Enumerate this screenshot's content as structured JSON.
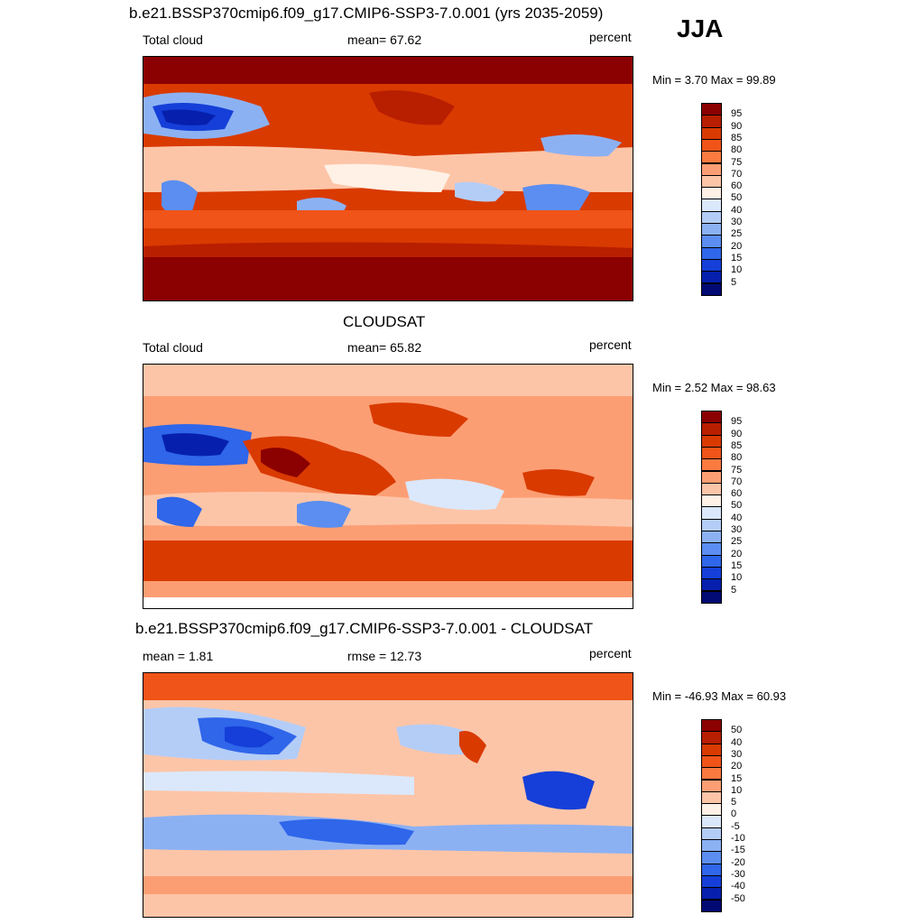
{
  "season": "JJA",
  "panels": [
    {
      "id": "model",
      "title": "b.e21.BSSP370cmip6.f09_g17.CMIP6-SSP3-7.0.001 (yrs 2035-2059)",
      "left_label": "Total cloud",
      "center_label": "mean=  67.62",
      "units": "percent",
      "minmax": "Min =   3.70 Max =  99.89",
      "legend_labels": [
        "95",
        "90",
        "85",
        "80",
        "75",
        "70",
        "60",
        "50",
        "40",
        "30",
        "25",
        "20",
        "15",
        "10",
        "5"
      ]
    },
    {
      "id": "obs",
      "title": "CLOUDSAT",
      "left_label": "Total cloud",
      "center_label": "mean=  65.82",
      "units": "percent",
      "minmax": "Min =   2.52 Max =  98.63",
      "legend_labels": [
        "95",
        "90",
        "85",
        "80",
        "75",
        "70",
        "60",
        "50",
        "40",
        "30",
        "25",
        "20",
        "15",
        "10",
        "5"
      ]
    },
    {
      "id": "diff",
      "title": "b.e21.BSSP370cmip6.f09_g17.CMIP6-SSP3-7.0.001 - CLOUDSAT",
      "left_label": "mean =   1.81",
      "center_label": "rmse =  12.73",
      "units": "percent",
      "minmax": "Min = -46.93 Max =  60.93",
      "legend_labels": [
        "50",
        "40",
        "30",
        "20",
        "15",
        "10",
        "5",
        "0",
        "-5",
        "-10",
        "-15",
        "-20",
        "-30",
        "-40",
        "-50"
      ]
    }
  ],
  "colors": {
    "scale": [
      "#8b0000",
      "#b81e00",
      "#d93a00",
      "#f05418",
      "#fa7a40",
      "#fc9e74",
      "#fdc5a8",
      "#fff1e6",
      "#dbe8fb",
      "#b4cdf7",
      "#8cb1f3",
      "#5b8ef0",
      "#2f66ea",
      "#153fd8",
      "#0620ad",
      "#010a72"
    ]
  }
}
